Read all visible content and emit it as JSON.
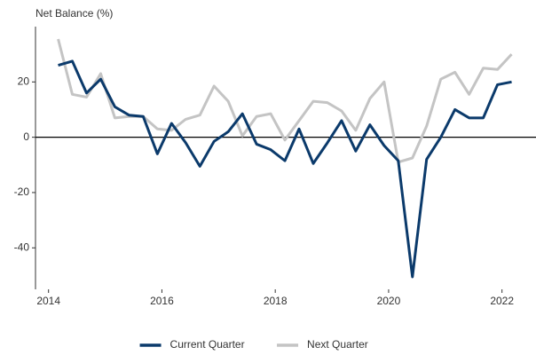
{
  "chart_data": {
    "type": "line",
    "y_label": "Net Balance (%)",
    "x": [
      2014.17,
      2014.42,
      2014.67,
      2014.92,
      2015.17,
      2015.42,
      2015.67,
      2015.92,
      2016.17,
      2016.42,
      2016.67,
      2016.92,
      2017.17,
      2017.42,
      2017.67,
      2017.92,
      2018.17,
      2018.42,
      2018.67,
      2018.92,
      2019.17,
      2019.42,
      2019.67,
      2019.92,
      2020.17,
      2020.42,
      2020.67,
      2020.92,
      2021.17,
      2021.42,
      2021.67,
      2021.92,
      2022.17
    ],
    "series": [
      {
        "name": "Current Quarter",
        "color": "#0b3a6b",
        "values": [
          26,
          27.5,
          16,
          21,
          11,
          8,
          7.5,
          -6,
          5,
          -2,
          -10.5,
          -1.5,
          2,
          8.5,
          -2.5,
          -4.5,
          -8.5,
          3,
          -9.5,
          -2,
          6,
          -5,
          4.5,
          -3,
          -8.5,
          -50.5,
          -8,
          0,
          10,
          7,
          7,
          19,
          20
        ]
      },
      {
        "name": "Next Quarter",
        "color": "#c4c4c4",
        "values": [
          35.5,
          15.5,
          14.5,
          23,
          7,
          7.5,
          7.5,
          3,
          2.5,
          6.5,
          8,
          18.5,
          13,
          0.5,
          7.5,
          8.5,
          -1,
          6,
          13,
          12.5,
          9.5,
          2.5,
          14,
          20,
          -9,
          -7.5,
          4,
          21,
          23.5,
          15.5,
          25,
          24.5,
          30
        ]
      }
    ],
    "xlim": [
      2013.77,
      2022.6
    ],
    "ylim": [
      -55,
      40
    ],
    "xticks": [
      2014,
      2016,
      2018,
      2020,
      2022
    ],
    "yticks": [
      -40,
      -20,
      0,
      20
    ],
    "legend": "bottom"
  }
}
